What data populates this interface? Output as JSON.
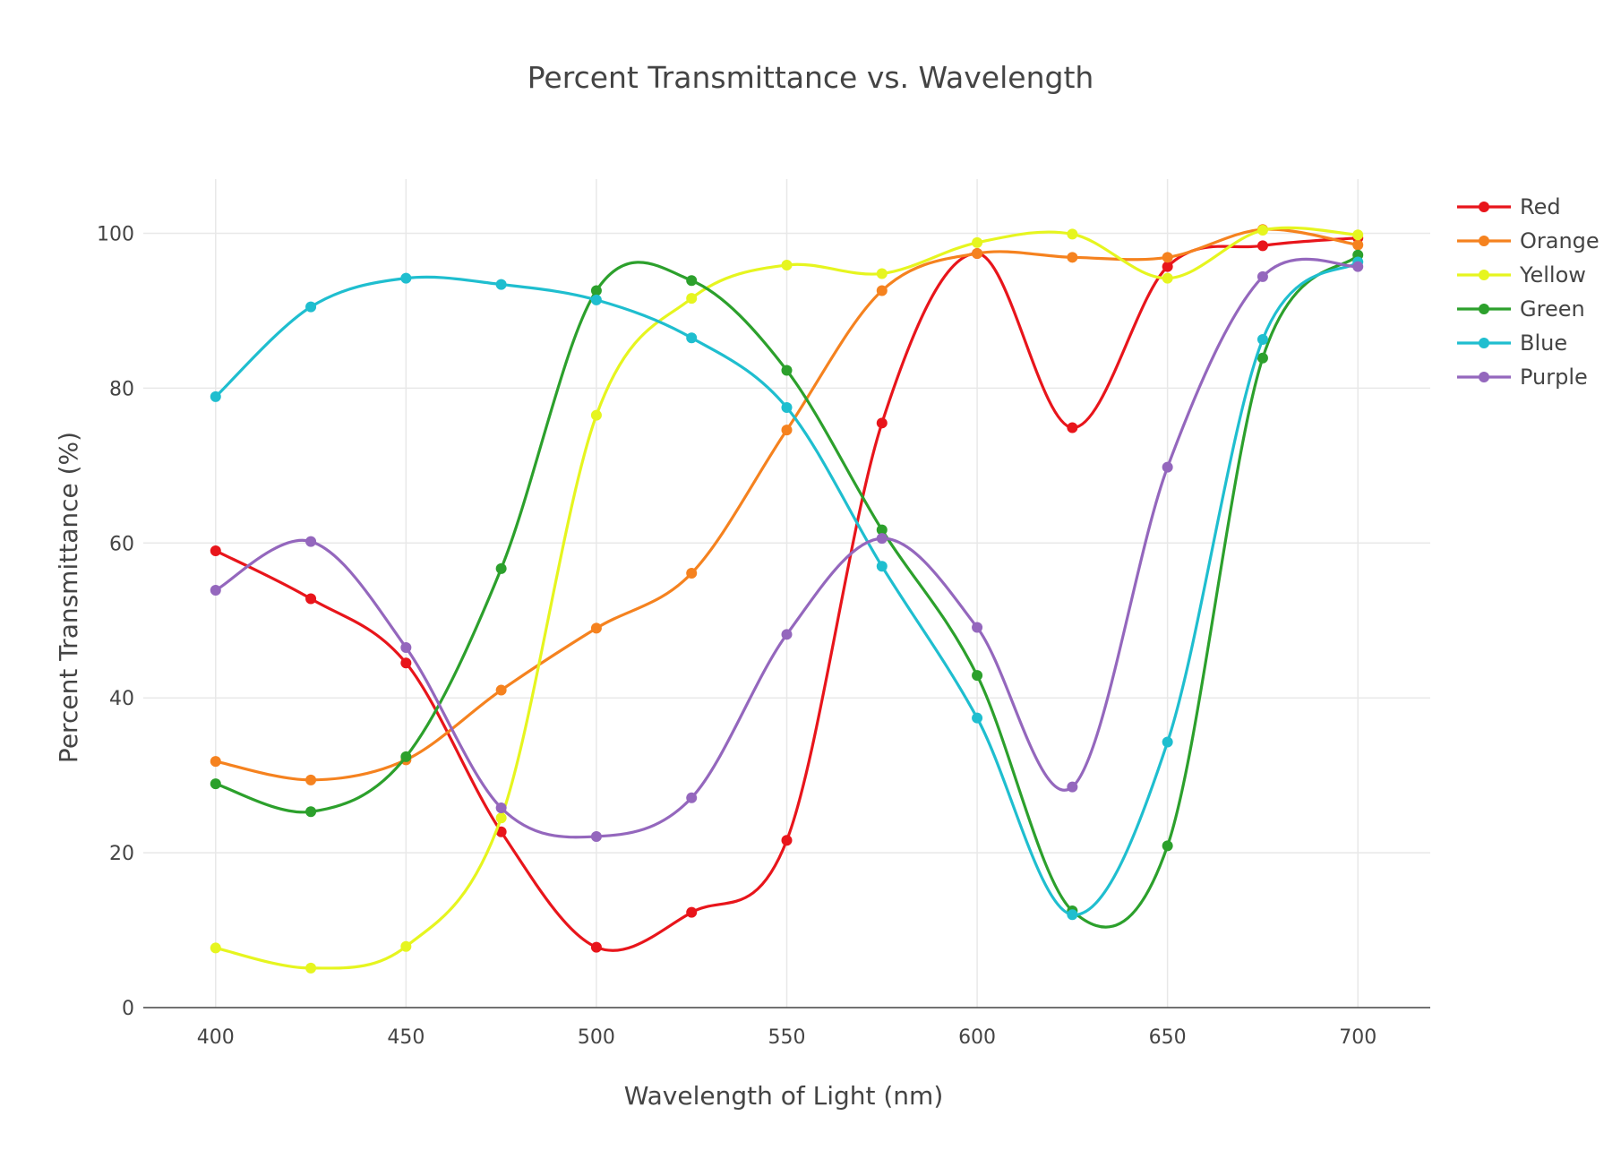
{
  "chart_data": {
    "type": "line",
    "title": "Percent Transmittance vs. Wavelength",
    "xlabel": "Wavelength of Light (nm)",
    "ylabel": "Percent Transmittance (%)",
    "xlim": [
      381,
      719
    ],
    "ylim": [
      0,
      107
    ],
    "x_ticks": [
      400,
      450,
      500,
      550,
      600,
      650,
      700
    ],
    "y_ticks": [
      0,
      20,
      40,
      60,
      80,
      100
    ],
    "grid": true,
    "smoothing": "spline",
    "legend_position": "top-right",
    "x": [
      400,
      425,
      450,
      475,
      500,
      525,
      550,
      575,
      600,
      625,
      650,
      675,
      700
    ],
    "series": [
      {
        "name": "Red",
        "color": "#e8151b",
        "values": [
          59.0,
          52.8,
          44.5,
          22.7,
          7.8,
          12.3,
          21.6,
          75.5,
          97.4,
          74.9,
          95.7,
          98.4,
          99.4
        ]
      },
      {
        "name": "Orange",
        "color": "#f5821f",
        "values": [
          31.8,
          29.4,
          32.0,
          41.0,
          49.0,
          56.1,
          74.6,
          92.6,
          97.4,
          96.9,
          96.9,
          100.5,
          98.5
        ]
      },
      {
        "name": "Yellow",
        "color": "#e6f51f",
        "values": [
          7.7,
          5.1,
          7.9,
          24.5,
          76.5,
          91.6,
          95.9,
          94.8,
          98.8,
          99.9,
          94.2,
          100.4,
          99.8
        ]
      },
      {
        "name": "Green",
        "color": "#2ca02c",
        "values": [
          28.9,
          25.3,
          32.4,
          56.7,
          92.6,
          93.9,
          82.3,
          61.7,
          42.9,
          12.5,
          20.9,
          83.9,
          97.2
        ]
      },
      {
        "name": "Blue",
        "color": "#1fbecf",
        "values": [
          78.9,
          90.5,
          94.2,
          93.4,
          91.4,
          86.5,
          77.5,
          57.0,
          37.4,
          12.0,
          34.3,
          86.3,
          96.3
        ]
      },
      {
        "name": "Purple",
        "color": "#9467bd",
        "values": [
          53.9,
          60.2,
          46.5,
          25.8,
          22.1,
          27.1,
          48.2,
          60.6,
          49.1,
          28.5,
          69.8,
          94.4,
          95.7
        ]
      }
    ]
  }
}
